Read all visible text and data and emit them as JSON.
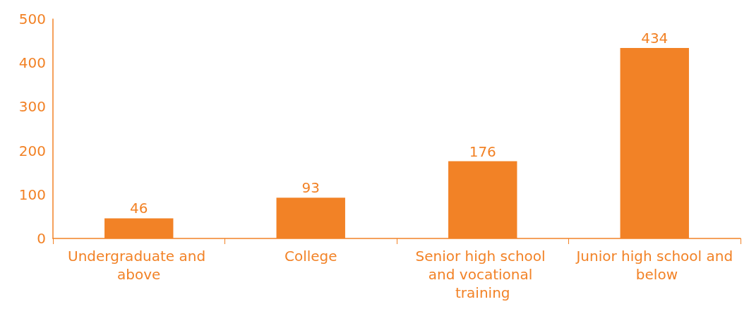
{
  "chart_data": {
    "type": "bar",
    "categories": [
      "Undergraduate and above",
      "College",
      "Senior high school and vocational training",
      "Junior high school and below"
    ],
    "values": [
      46,
      93,
      176,
      434
    ],
    "color": "#f28226",
    "ylim": [
      0,
      500
    ],
    "yticks": [
      0,
      100,
      200,
      300,
      400,
      500
    ],
    "grid": false,
    "data_labels": true
  }
}
